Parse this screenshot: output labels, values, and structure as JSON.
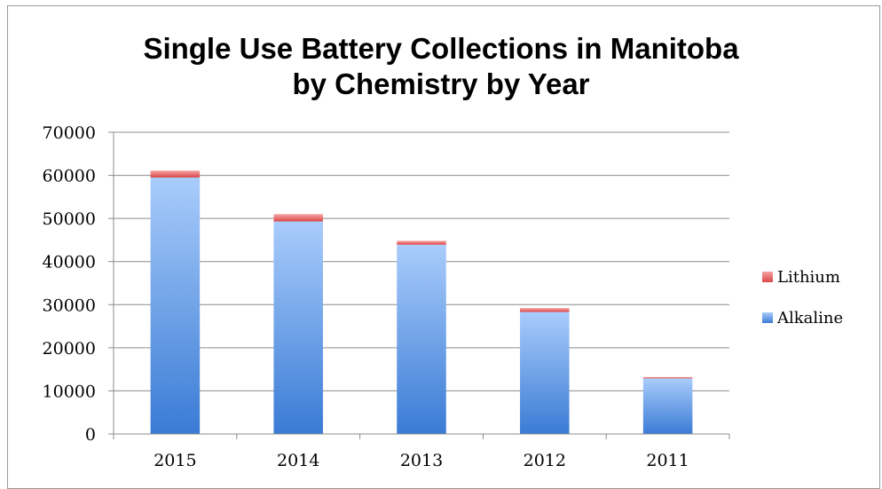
{
  "chart_data": {
    "type": "bar",
    "stacked": true,
    "title": "Single Use Battery Collections in Manitoba",
    "subtitle": "by Chemistry by Year",
    "categories": [
      "2015",
      "2014",
      "2013",
      "2012",
      "2011"
    ],
    "series": [
      {
        "name": "Alkaline",
        "values": [
          59500,
          49300,
          43900,
          28300,
          12900
        ],
        "color": "#4f86d6"
      },
      {
        "name": "Lithium",
        "values": [
          1600,
          1700,
          900,
          900,
          300
        ],
        "color": "#e06666"
      }
    ],
    "ylim": [
      0,
      70000
    ],
    "yticks": [
      "0",
      "10000",
      "20000",
      "30000",
      "40000",
      "50000",
      "60000",
      "70000"
    ],
    "grid": true,
    "legend": "right"
  }
}
